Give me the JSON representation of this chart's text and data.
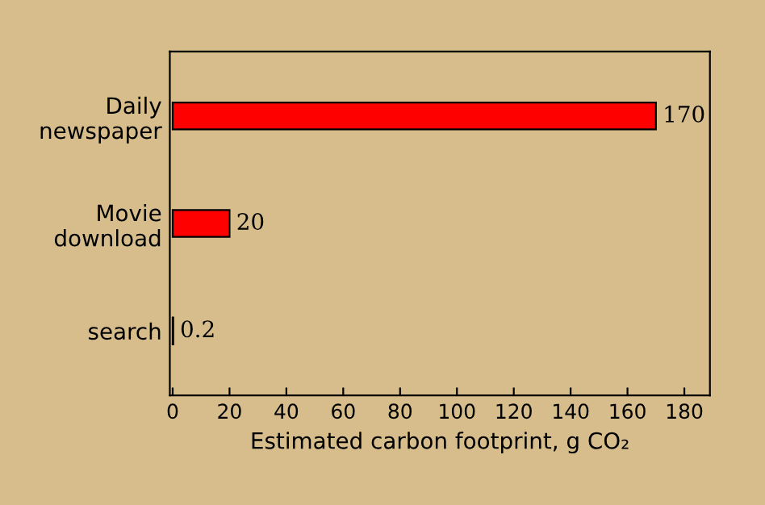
{
  "chart_data": {
    "type": "bar",
    "orientation": "horizontal",
    "categories": [
      "Daily\nnewspaper",
      "Movie\ndownload",
      "search"
    ],
    "values": [
      170,
      20,
      0.2
    ],
    "color": "#ff0000",
    "xlabel": "Estimated carbon footprint, g CO₂",
    "xlim": [
      -1,
      189
    ],
    "xticks": [
      0,
      20,
      40,
      60,
      80,
      100,
      120,
      140,
      160,
      180
    ],
    "data_labels": true,
    "grid": false,
    "legend": false
  }
}
